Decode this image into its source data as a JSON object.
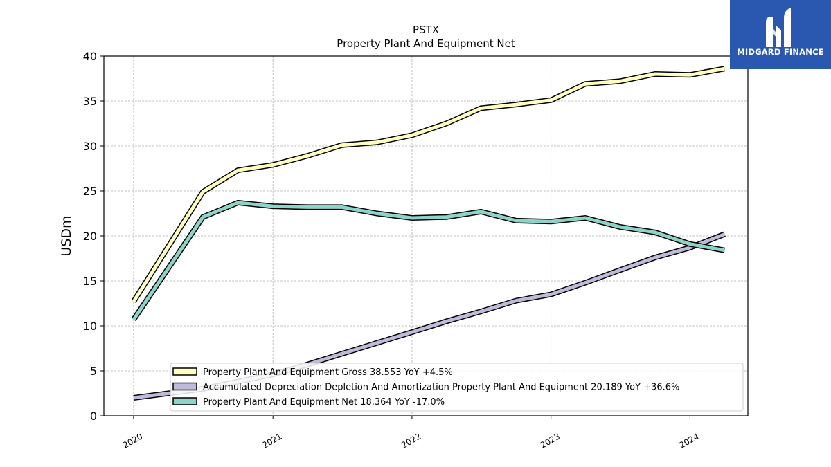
{
  "brand": {
    "name": "MIDGARD FINANCE",
    "logo_icon": "midgard-logo-icon",
    "color": "#2a57b0"
  },
  "chart_data": {
    "type": "line",
    "title": "PSTX",
    "subtitle": "Property Plant And Equipment Net",
    "xlabel": "",
    "ylabel": "USDm",
    "ylim": [
      0,
      40
    ],
    "xlim": [
      "2019-10-15",
      "2024-06-01"
    ],
    "yticks": [
      0,
      5,
      10,
      15,
      20,
      25,
      30,
      35,
      40
    ],
    "xticks": [
      "2020",
      "2021",
      "2022",
      "2023",
      "2024"
    ],
    "grid": true,
    "legend_position": "lower-right",
    "x": [
      "2020-01-01",
      "2020-07-01",
      "2020-10-01",
      "2021-01-01",
      "2021-04-01",
      "2021-07-01",
      "2021-10-01",
      "2022-01-01",
      "2022-04-01",
      "2022-07-01",
      "2022-10-01",
      "2023-01-01",
      "2023-04-01",
      "2023-07-01",
      "2023-10-01",
      "2024-01-01",
      "2024-04-01"
    ],
    "series": [
      {
        "name": "Property Plant And Equipment Gross",
        "legend": "Property Plant And Equipment Gross  38.553 YoY +4.5%",
        "color": "#ffffbf",
        "values": [
          12.7,
          24.9,
          27.3,
          27.9,
          28.9,
          30.1,
          30.4,
          31.2,
          32.5,
          34.2,
          34.6,
          35.1,
          36.9,
          37.2,
          38.0,
          37.9,
          38.6
        ]
      },
      {
        "name": "Accumulated Depreciation Depletion And Amortization Property Plant And Equipment",
        "legend": "Accumulated Depreciation Depletion And Amortization Property Plant And Equipment  20.189 YoY +36.6%",
        "color": "#bebada",
        "values": [
          2.0,
          3.0,
          3.8,
          4.6,
          5.7,
          6.9,
          8.1,
          9.3,
          10.5,
          11.6,
          12.8,
          13.5,
          14.8,
          16.2,
          17.6,
          18.7,
          20.2
        ]
      },
      {
        "name": "Property Plant And Equipment Net",
        "legend": "Property Plant And Equipment Net  18.364 YoY -17.0%",
        "color": "#8dd3c7",
        "values": [
          10.7,
          22.1,
          23.7,
          23.3,
          23.2,
          23.2,
          22.5,
          22.0,
          22.1,
          22.7,
          21.7,
          21.6,
          22.0,
          21.0,
          20.4,
          19.1,
          18.4
        ]
      }
    ]
  }
}
